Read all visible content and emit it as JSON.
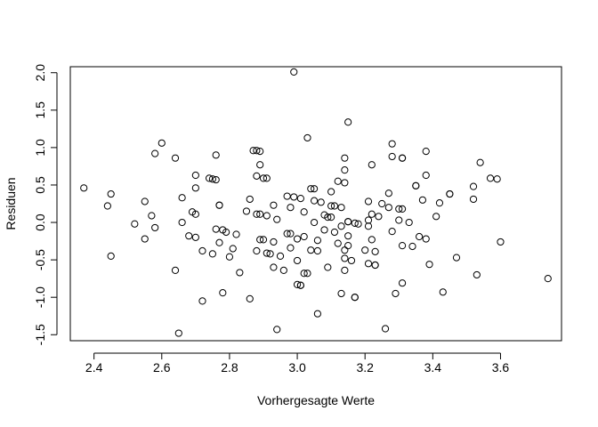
{
  "chart_data": {
    "type": "scatter",
    "title": "",
    "xlabel": "Vorhergesagte Werte",
    "ylabel": "Residuen",
    "xlim": [
      2.33,
      3.78
    ],
    "ylim": [
      -1.58,
      2.08
    ],
    "xticks": [
      2.4,
      2.6,
      2.8,
      3.0,
      3.2,
      3.4,
      3.6
    ],
    "yticks": [
      -1.5,
      -1.0,
      -0.5,
      0.0,
      0.5,
      1.0,
      1.5,
      2.0
    ],
    "xtick_labels": [
      "2.4",
      "2.6",
      "2.8",
      "3.0",
      "3.2",
      "3.4",
      "3.6"
    ],
    "ytick_labels": [
      "-1.5",
      "-1.0",
      "-0.5",
      "0.0",
      "0.5",
      "1.0",
      "1.5",
      "2.0"
    ],
    "grid": false,
    "marker": "open-circle",
    "color": "#000000",
    "points": [
      [
        2.37,
        0.46
      ],
      [
        2.44,
        0.22
      ],
      [
        2.45,
        0.38
      ],
      [
        2.45,
        -0.45
      ],
      [
        2.52,
        -0.02
      ],
      [
        2.55,
        0.28
      ],
      [
        2.55,
        -0.22
      ],
      [
        2.57,
        0.09
      ],
      [
        2.58,
        -0.07
      ],
      [
        2.58,
        0.92
      ],
      [
        2.6,
        1.06
      ],
      [
        2.64,
        0.86
      ],
      [
        2.64,
        -0.64
      ],
      [
        2.65,
        -1.48
      ],
      [
        2.66,
        0.33
      ],
      [
        2.66,
        0.0
      ],
      [
        2.68,
        -0.18
      ],
      [
        2.69,
        0.14
      ],
      [
        2.7,
        0.63
      ],
      [
        2.7,
        -0.2
      ],
      [
        2.7,
        0.46
      ],
      [
        2.7,
        0.11
      ],
      [
        2.72,
        -0.38
      ],
      [
        2.72,
        -1.05
      ],
      [
        2.74,
        0.59
      ],
      [
        2.75,
        -0.42
      ],
      [
        2.75,
        0.58
      ],
      [
        2.76,
        0.57
      ],
      [
        2.76,
        -0.09
      ],
      [
        2.76,
        0.9
      ],
      [
        2.77,
        0.23
      ],
      [
        2.77,
        0.23
      ],
      [
        2.77,
        -0.27
      ],
      [
        2.78,
        -0.94
      ],
      [
        2.78,
        -0.1
      ],
      [
        2.79,
        -0.13
      ],
      [
        2.8,
        -0.46
      ],
      [
        2.81,
        -0.35
      ],
      [
        2.82,
        -0.16
      ],
      [
        2.83,
        -0.67
      ],
      [
        2.85,
        0.15
      ],
      [
        2.86,
        -1.02
      ],
      [
        2.86,
        0.31
      ],
      [
        2.87,
        0.96
      ],
      [
        2.88,
        0.96
      ],
      [
        2.88,
        0.62
      ],
      [
        2.88,
        -0.38
      ],
      [
        2.88,
        0.11
      ],
      [
        2.89,
        0.11
      ],
      [
        2.89,
        -0.23
      ],
      [
        2.89,
        0.77
      ],
      [
        2.89,
        0.95
      ],
      [
        2.9,
        -0.23
      ],
      [
        2.9,
        0.59
      ],
      [
        2.91,
        0.59
      ],
      [
        2.91,
        0.09
      ],
      [
        2.91,
        -0.41
      ],
      [
        2.92,
        -0.42
      ],
      [
        2.93,
        -0.26
      ],
      [
        2.93,
        -0.6
      ],
      [
        2.93,
        0.23
      ],
      [
        2.94,
        0.04
      ],
      [
        2.94,
        -1.43
      ],
      [
        2.95,
        -0.45
      ],
      [
        2.96,
        -0.64
      ],
      [
        2.97,
        -0.15
      ],
      [
        2.97,
        0.35
      ],
      [
        2.98,
        -0.15
      ],
      [
        2.98,
        -0.34
      ],
      [
        2.98,
        0.2
      ],
      [
        2.99,
        0.34
      ],
      [
        2.99,
        2.01
      ],
      [
        3.0,
        -0.83
      ],
      [
        3.0,
        -0.51
      ],
      [
        3.0,
        -0.22
      ],
      [
        3.01,
        -0.84
      ],
      [
        3.01,
        -0.84
      ],
      [
        3.01,
        0.32
      ],
      [
        3.02,
        -0.68
      ],
      [
        3.02,
        0.14
      ],
      [
        3.02,
        -0.19
      ],
      [
        3.03,
        -0.68
      ],
      [
        3.03,
        1.13
      ],
      [
        3.04,
        -0.37
      ],
      [
        3.04,
        0.45
      ],
      [
        3.05,
        0.45
      ],
      [
        3.05,
        0.29
      ],
      [
        3.05,
        0.0
      ],
      [
        3.06,
        -0.38
      ],
      [
        3.06,
        -1.22
      ],
      [
        3.06,
        -0.24
      ],
      [
        3.07,
        0.27
      ],
      [
        3.08,
        -0.1
      ],
      [
        3.08,
        0.1
      ],
      [
        3.09,
        0.07
      ],
      [
        3.09,
        -0.6
      ],
      [
        3.1,
        0.07
      ],
      [
        3.1,
        0.41
      ],
      [
        3.1,
        0.22
      ],
      [
        3.11,
        -0.13
      ],
      [
        3.11,
        0.22
      ],
      [
        3.12,
        -0.28
      ],
      [
        3.12,
        0.55
      ],
      [
        3.13,
        -0.05
      ],
      [
        3.13,
        -0.95
      ],
      [
        3.13,
        0.2
      ],
      [
        3.14,
        -0.37
      ],
      [
        3.14,
        0.7
      ],
      [
        3.14,
        0.86
      ],
      [
        3.14,
        0.53
      ],
      [
        3.14,
        -0.48
      ],
      [
        3.14,
        -0.64
      ],
      [
        3.15,
        -0.18
      ],
      [
        3.15,
        0.01
      ],
      [
        3.15,
        1.34
      ],
      [
        3.15,
        0.01
      ],
      [
        3.15,
        -0.31
      ],
      [
        3.16,
        -0.51
      ],
      [
        3.17,
        -0.01
      ],
      [
        3.17,
        -1.0
      ],
      [
        3.17,
        -1.0
      ],
      [
        3.18,
        -0.02
      ],
      [
        3.2,
        -0.37
      ],
      [
        3.21,
        0.03
      ],
      [
        3.21,
        -0.55
      ],
      [
        3.21,
        -0.05
      ],
      [
        3.21,
        0.28
      ],
      [
        3.22,
        0.11
      ],
      [
        3.22,
        0.77
      ],
      [
        3.22,
        -0.23
      ],
      [
        3.23,
        -0.39
      ],
      [
        3.23,
        -0.57
      ],
      [
        3.23,
        -0.57
      ],
      [
        3.24,
        0.08
      ],
      [
        3.25,
        0.25
      ],
      [
        3.26,
        -1.42
      ],
      [
        3.27,
        0.2
      ],
      [
        3.27,
        0.39
      ],
      [
        3.28,
        -0.12
      ],
      [
        3.28,
        1.05
      ],
      [
        3.28,
        0.88
      ],
      [
        3.29,
        -0.95
      ],
      [
        3.3,
        0.03
      ],
      [
        3.3,
        0.18
      ],
      [
        3.31,
        -0.31
      ],
      [
        3.31,
        0.86
      ],
      [
        3.31,
        0.86
      ],
      [
        3.31,
        0.18
      ],
      [
        3.31,
        -0.81
      ],
      [
        3.33,
        0.0
      ],
      [
        3.34,
        -0.32
      ],
      [
        3.35,
        0.49
      ],
      [
        3.35,
        0.49
      ],
      [
        3.36,
        -0.19
      ],
      [
        3.37,
        0.3
      ],
      [
        3.38,
        0.63
      ],
      [
        3.38,
        -0.22
      ],
      [
        3.38,
        0.95
      ],
      [
        3.39,
        -0.56
      ],
      [
        3.41,
        0.08
      ],
      [
        3.42,
        0.26
      ],
      [
        3.43,
        -0.93
      ],
      [
        3.45,
        0.38
      ],
      [
        3.45,
        0.38
      ],
      [
        3.47,
        -0.47
      ],
      [
        3.52,
        0.48
      ],
      [
        3.52,
        0.31
      ],
      [
        3.53,
        -0.7
      ],
      [
        3.54,
        0.8
      ],
      [
        3.57,
        0.59
      ],
      [
        3.59,
        0.58
      ],
      [
        3.6,
        -0.26
      ],
      [
        3.74,
        -0.75
      ]
    ]
  }
}
